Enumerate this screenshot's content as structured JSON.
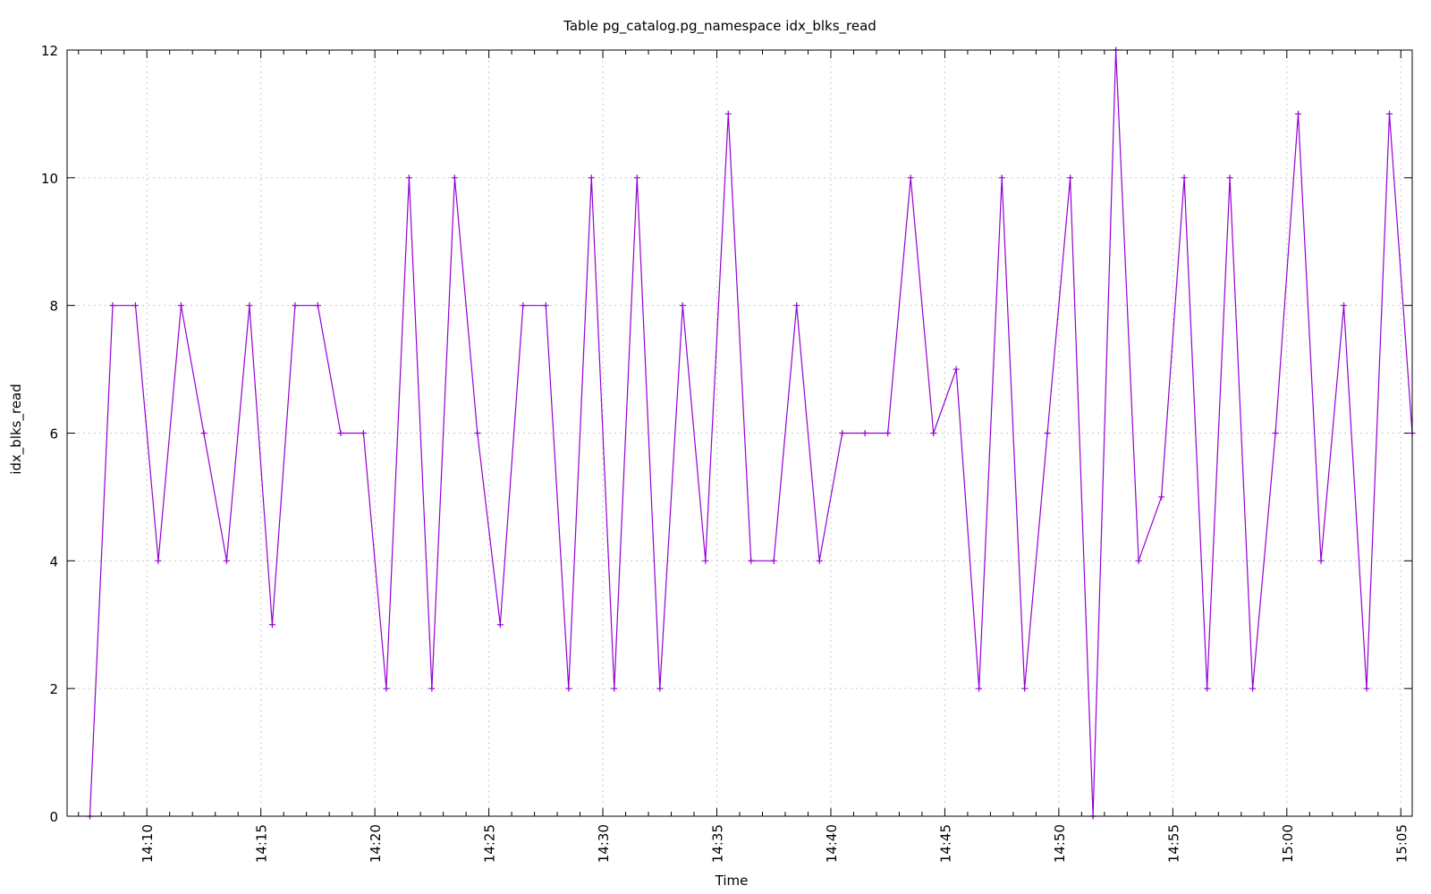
{
  "chart_data": {
    "type": "line",
    "title": "Table pg_catalog.pg_namespace idx_blks_read",
    "xlabel": "Time",
    "ylabel": "idx_blks_read",
    "xlim": [
      "14:06:30",
      "15:05:30"
    ],
    "ylim": [
      0,
      12
    ],
    "grid": true,
    "legend": "none",
    "x_ticks": [
      "14:10",
      "14:15",
      "14:20",
      "14:25",
      "14:30",
      "14:35",
      "14:40",
      "14:45",
      "14:50",
      "14:55",
      "15:00",
      "15:05"
    ],
    "y_ticks": [
      0,
      2,
      4,
      6,
      8,
      10,
      12
    ],
    "colors": {
      "series": "#9400d3",
      "grid": "#c8c8c8",
      "axis": "#000000"
    },
    "series": [
      {
        "x": [
          "14:07:30",
          "14:08:30",
          "14:09:30",
          "14:10:30",
          "14:11:30",
          "14:12:30",
          "14:13:30",
          "14:14:30",
          "14:15:30",
          "14:16:30",
          "14:17:30",
          "14:18:30",
          "14:19:30",
          "14:20:30",
          "14:21:30",
          "14:22:30",
          "14:23:30",
          "14:24:30",
          "14:25:30",
          "14:26:30",
          "14:27:30",
          "14:28:30",
          "14:29:30",
          "14:30:30",
          "14:31:30",
          "14:32:30",
          "14:33:30",
          "14:34:30",
          "14:35:30",
          "14:36:30",
          "14:37:30",
          "14:38:30",
          "14:39:30",
          "14:40:30",
          "14:41:30",
          "14:42:30",
          "14:43:30",
          "14:44:30",
          "14:45:30",
          "14:46:30",
          "14:47:30",
          "14:48:30",
          "14:49:30",
          "14:50:30",
          "14:51:30",
          "14:52:30",
          "14:53:30",
          "14:54:30",
          "14:55:30",
          "14:56:30",
          "14:57:30",
          "14:58:30",
          "14:59:30",
          "15:00:30",
          "15:01:30",
          "15:02:30",
          "15:03:30",
          "15:04:30",
          "15:05:30"
        ],
        "y": [
          0,
          8,
          8,
          4,
          8,
          6,
          4,
          8,
          3,
          8,
          8,
          6,
          6,
          2,
          10,
          2,
          10,
          6,
          3,
          8,
          8,
          2,
          10,
          2,
          10,
          2,
          8,
          4,
          11,
          4,
          4,
          8,
          4,
          6,
          6,
          6,
          10,
          6,
          7,
          2,
          10,
          2,
          6,
          10,
          0,
          12,
          4,
          5,
          10,
          2,
          10,
          2,
          6,
          11,
          4,
          8,
          2,
          11,
          6
        ]
      }
    ]
  }
}
